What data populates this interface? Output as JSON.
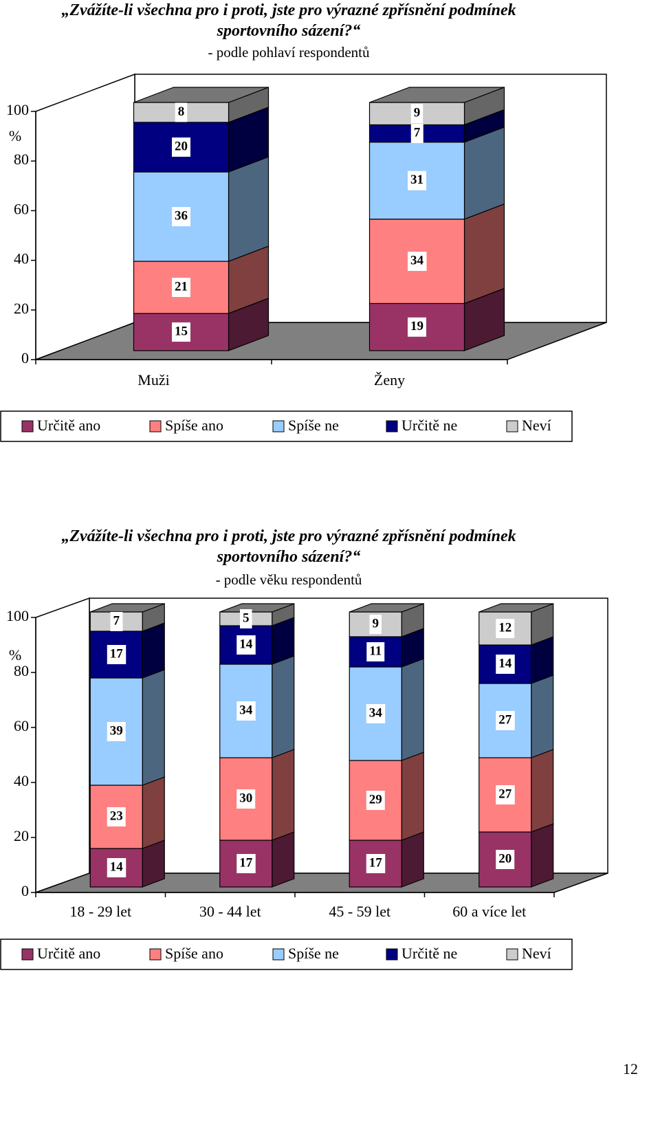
{
  "chart_data": [
    {
      "type": "bar3d_stacked",
      "title": "„Zvážíte-li všechna pro i proti, jste pro výrazné zpřísnění podmínek sportovního sázení?“",
      "subtitle": "- podle pohlaví respondentů",
      "y_label": "%",
      "categories": [
        "Muži",
        "Ženy"
      ],
      "series": [
        {
          "name": "Určitě ano",
          "color": "#993366",
          "values": [
            15,
            19
          ]
        },
        {
          "name": "Spíše ano",
          "color": "#FF8080",
          "values": [
            21,
            34
          ]
        },
        {
          "name": "Spíše ne",
          "color": "#99CCFF",
          "values": [
            36,
            31
          ]
        },
        {
          "name": "Určitě ne",
          "color": "#000080",
          "values": [
            20,
            7
          ]
        },
        {
          "name": "Neví",
          "color": "#CCCCCC",
          "values": [
            8,
            9
          ]
        }
      ],
      "ylim": [
        0,
        100
      ],
      "yticks": [
        0,
        20,
        40,
        60,
        80,
        100
      ],
      "legend": "bottom"
    },
    {
      "type": "bar3d_stacked",
      "title": "„Zvážíte-li všechna pro i proti, jste pro výrazné zpřísnění podmínek sportovního sázení?“",
      "subtitle": "- podle věku respondentů",
      "y_label": "%",
      "categories": [
        "18 - 29 let",
        "30 - 44 let",
        "45 - 59 let",
        "60 a více let"
      ],
      "series": [
        {
          "name": "Určitě ano",
          "color": "#993366",
          "values": [
            14,
            17,
            17,
            20
          ]
        },
        {
          "name": "Spíše ano",
          "color": "#FF8080",
          "values": [
            23,
            30,
            29,
            27
          ]
        },
        {
          "name": "Spíše ne",
          "color": "#99CCFF",
          "values": [
            39,
            34,
            34,
            27
          ]
        },
        {
          "name": "Určitě ne",
          "color": "#000080",
          "values": [
            17,
            14,
            11,
            14
          ]
        },
        {
          "name": "Neví",
          "color": "#CCCCCC",
          "values": [
            7,
            5,
            9,
            12
          ]
        }
      ],
      "ylim": [
        0,
        100
      ],
      "yticks": [
        0,
        20,
        40,
        60,
        80,
        100
      ],
      "legend": "bottom"
    }
  ],
  "page_number": "12"
}
